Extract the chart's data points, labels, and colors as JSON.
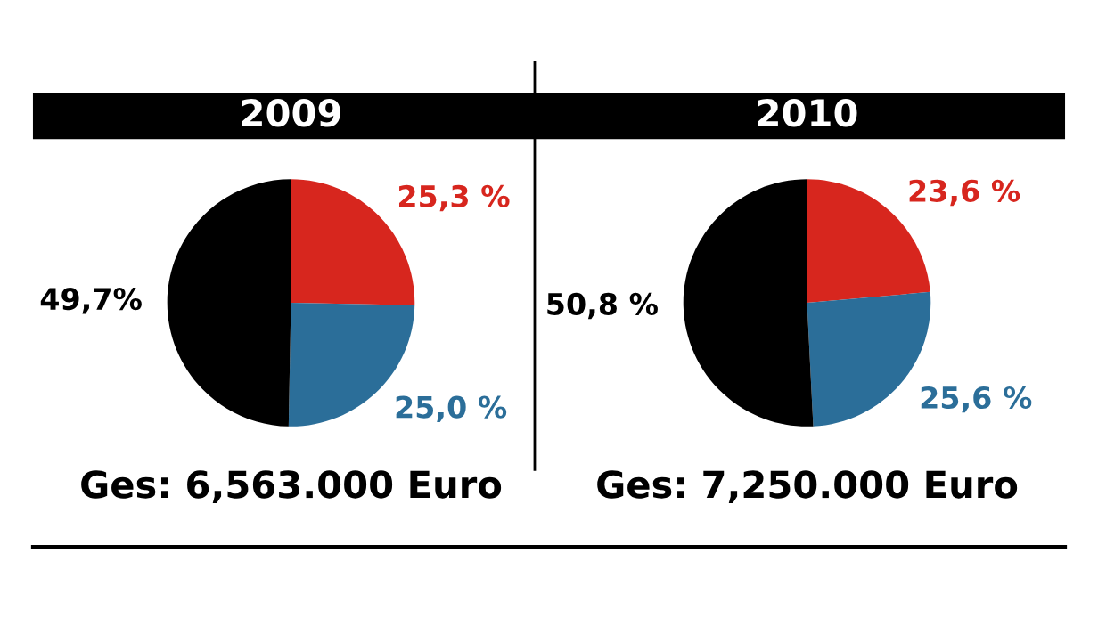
{
  "chart_data": [
    {
      "type": "pie",
      "title": "2009",
      "categories": [
        null,
        null,
        null
      ],
      "values": [
        25.3,
        25.0,
        49.7
      ],
      "colors": [
        "#d7261e",
        "#2b6e99",
        "#000000"
      ],
      "value_labels": [
        "25,3 %",
        "25,0 %",
        "49,7%"
      ],
      "annotations": [
        "Ges: 6,563.000 Euro"
      ]
    },
    {
      "type": "pie",
      "title": "2010",
      "categories": [
        null,
        null,
        null
      ],
      "values": [
        23.6,
        25.6,
        50.8
      ],
      "colors": [
        "#d7261e",
        "#2b6e99",
        "#000000"
      ],
      "value_labels": [
        "23,6 %",
        "25,6 %",
        "50,8 %"
      ],
      "annotations": [
        "Ges: 7,250.000 Euro"
      ]
    }
  ]
}
